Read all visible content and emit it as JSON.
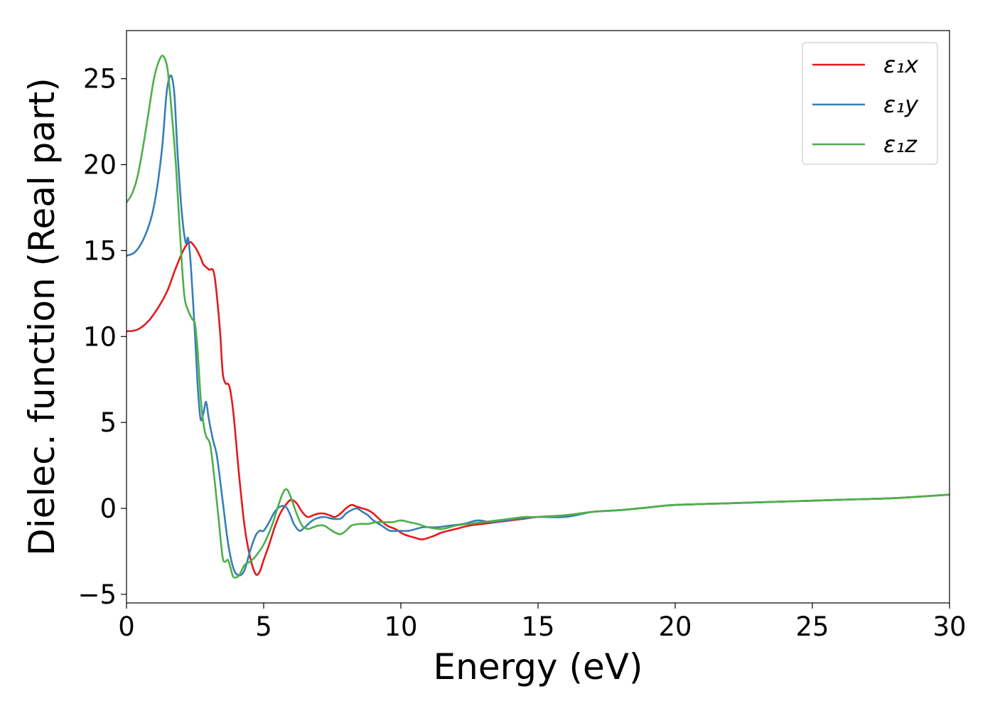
{
  "chart_data": {
    "type": "line",
    "xlabel": "Energy (eV)",
    "ylabel": "Dielec. function (Real part)",
    "xlim": [
      0,
      30
    ],
    "ylim": [
      -5.5,
      27.8
    ],
    "xticks": [
      0,
      5,
      10,
      15,
      20,
      25,
      30
    ],
    "xtick_labels": [
      "0",
      "5",
      "10",
      "15",
      "20",
      "25",
      "30"
    ],
    "yticks": [
      -5,
      0,
      5,
      10,
      15,
      20,
      25
    ],
    "ytick_labels": [
      "−5",
      "0",
      "5",
      "10",
      "15",
      "20",
      "25"
    ],
    "grid": false,
    "legend_position": "top-right",
    "series": [
      {
        "name": "ε₁x",
        "color": "#e41a1c",
        "points": [
          [
            0,
            10.3
          ],
          [
            0.4,
            10.4
          ],
          [
            0.8,
            10.9
          ],
          [
            1.2,
            11.8
          ],
          [
            1.5,
            12.7
          ],
          [
            1.8,
            14.0
          ],
          [
            2.1,
            15.1
          ],
          [
            2.3,
            15.5
          ],
          [
            2.5,
            15.2
          ],
          [
            2.7,
            14.6
          ],
          [
            2.8,
            14.2
          ],
          [
            3.0,
            13.9
          ],
          [
            3.2,
            13.6
          ],
          [
            3.4,
            10.5
          ],
          [
            3.5,
            8.0
          ],
          [
            3.6,
            7.3
          ],
          [
            3.75,
            7.1
          ],
          [
            3.9,
            5.5
          ],
          [
            4.1,
            2.0
          ],
          [
            4.3,
            -1.0
          ],
          [
            4.5,
            -2.8
          ],
          [
            4.7,
            -3.8
          ],
          [
            4.85,
            -3.7
          ],
          [
            5.0,
            -3.0
          ],
          [
            5.2,
            -2.1
          ],
          [
            5.4,
            -1.1
          ],
          [
            5.6,
            -0.3
          ],
          [
            5.8,
            0.2
          ],
          [
            6.0,
            0.5
          ],
          [
            6.2,
            0.3
          ],
          [
            6.4,
            -0.2
          ],
          [
            6.6,
            -0.5
          ],
          [
            6.8,
            -0.4
          ],
          [
            7.0,
            -0.3
          ],
          [
            7.2,
            -0.3
          ],
          [
            7.4,
            -0.4
          ],
          [
            7.6,
            -0.5
          ],
          [
            7.8,
            -0.3
          ],
          [
            8.0,
            0.0
          ],
          [
            8.2,
            0.2
          ],
          [
            8.4,
            0.1
          ],
          [
            8.6,
            0.0
          ],
          [
            8.8,
            -0.1
          ],
          [
            9.0,
            -0.3
          ],
          [
            9.2,
            -0.6
          ],
          [
            9.5,
            -1.0
          ],
          [
            9.8,
            -1.2
          ],
          [
            10.1,
            -1.5
          ],
          [
            10.5,
            -1.7
          ],
          [
            10.8,
            -1.8
          ],
          [
            11.2,
            -1.6
          ],
          [
            11.5,
            -1.4
          ],
          [
            12.0,
            -1.2
          ],
          [
            12.5,
            -1.0
          ],
          [
            13.0,
            -0.9
          ],
          [
            13.5,
            -0.8
          ],
          [
            14.0,
            -0.7
          ],
          [
            14.5,
            -0.6
          ],
          [
            15.0,
            -0.5
          ],
          [
            16.0,
            -0.4
          ],
          [
            17.0,
            -0.2
          ],
          [
            18.0,
            -0.1
          ],
          [
            19.0,
            0.05
          ],
          [
            20.0,
            0.2
          ],
          [
            22.0,
            0.3
          ],
          [
            24.0,
            0.4
          ],
          [
            26.0,
            0.5
          ],
          [
            28.0,
            0.6
          ],
          [
            30.0,
            0.8
          ]
        ]
      },
      {
        "name": "ε₁y",
        "color": "#377eb8",
        "points": [
          [
            0,
            14.7
          ],
          [
            0.3,
            14.9
          ],
          [
            0.6,
            15.6
          ],
          [
            0.9,
            16.9
          ],
          [
            1.1,
            18.5
          ],
          [
            1.3,
            21.0
          ],
          [
            1.45,
            24.0
          ],
          [
            1.55,
            25.0
          ],
          [
            1.65,
            25.1
          ],
          [
            1.75,
            24.0
          ],
          [
            1.85,
            21.0
          ],
          [
            2.0,
            17.5
          ],
          [
            2.15,
            15.5
          ],
          [
            2.25,
            15.7
          ],
          [
            2.35,
            14.0
          ],
          [
            2.5,
            10.0
          ],
          [
            2.6,
            7.0
          ],
          [
            2.7,
            5.2
          ],
          [
            2.8,
            5.5
          ],
          [
            2.9,
            6.2
          ],
          [
            3.0,
            5.2
          ],
          [
            3.15,
            4.0
          ],
          [
            3.3,
            3.0
          ],
          [
            3.5,
            0.5
          ],
          [
            3.7,
            -2.0
          ],
          [
            3.9,
            -3.5
          ],
          [
            4.1,
            -3.9
          ],
          [
            4.3,
            -3.6
          ],
          [
            4.5,
            -2.5
          ],
          [
            4.7,
            -1.6
          ],
          [
            4.85,
            -1.3
          ],
          [
            5.0,
            -1.3
          ],
          [
            5.2,
            -0.8
          ],
          [
            5.4,
            -0.2
          ],
          [
            5.6,
            0.1
          ],
          [
            5.8,
            0.1
          ],
          [
            5.95,
            -0.3
          ],
          [
            6.1,
            -0.9
          ],
          [
            6.3,
            -1.3
          ],
          [
            6.5,
            -1.1
          ],
          [
            6.7,
            -0.8
          ],
          [
            6.9,
            -0.6
          ],
          [
            7.2,
            -0.5
          ],
          [
            7.5,
            -0.6
          ],
          [
            7.8,
            -0.6
          ],
          [
            8.0,
            -0.3
          ],
          [
            8.2,
            -0.1
          ],
          [
            8.4,
            0.0
          ],
          [
            8.6,
            -0.2
          ],
          [
            8.8,
            -0.4
          ],
          [
            9.0,
            -0.7
          ],
          [
            9.3,
            -1.0
          ],
          [
            9.6,
            -1.3
          ],
          [
            9.9,
            -1.3
          ],
          [
            10.3,
            -1.3
          ],
          [
            10.8,
            -1.1
          ],
          [
            11.3,
            -1.1
          ],
          [
            11.8,
            -1.0
          ],
          [
            12.3,
            -0.9
          ],
          [
            12.8,
            -0.7
          ],
          [
            13.3,
            -0.8
          ],
          [
            13.8,
            -0.7
          ],
          [
            14.3,
            -0.6
          ],
          [
            15.0,
            -0.5
          ],
          [
            16.0,
            -0.5
          ],
          [
            17.0,
            -0.2
          ],
          [
            18.0,
            -0.1
          ],
          [
            19.0,
            0.05
          ],
          [
            20.0,
            0.2
          ],
          [
            22.0,
            0.3
          ],
          [
            24.0,
            0.4
          ],
          [
            26.0,
            0.5
          ],
          [
            28.0,
            0.6
          ],
          [
            30.0,
            0.8
          ]
        ]
      },
      {
        "name": "ε₁z",
        "color": "#4daf4a",
        "points": [
          [
            0,
            17.8
          ],
          [
            0.2,
            18.3
          ],
          [
            0.4,
            19.3
          ],
          [
            0.6,
            21.0
          ],
          [
            0.8,
            23.0
          ],
          [
            1.0,
            25.0
          ],
          [
            1.2,
            26.1
          ],
          [
            1.35,
            26.3
          ],
          [
            1.5,
            25.5
          ],
          [
            1.65,
            23.0
          ],
          [
            1.8,
            20.0
          ],
          [
            1.95,
            16.0
          ],
          [
            2.1,
            12.5
          ],
          [
            2.25,
            11.5
          ],
          [
            2.4,
            11.0
          ],
          [
            2.5,
            10.7
          ],
          [
            2.6,
            9.0
          ],
          [
            2.7,
            6.5
          ],
          [
            2.8,
            5.0
          ],
          [
            2.9,
            4.2
          ],
          [
            3.05,
            3.7
          ],
          [
            3.2,
            1.8
          ],
          [
            3.35,
            -0.5
          ],
          [
            3.5,
            -2.8
          ],
          [
            3.6,
            -3.1
          ],
          [
            3.7,
            -3.0
          ],
          [
            3.8,
            -3.5
          ],
          [
            3.9,
            -4.0
          ],
          [
            4.1,
            -3.9
          ],
          [
            4.3,
            -3.3
          ],
          [
            4.5,
            -3.1
          ],
          [
            4.7,
            -2.8
          ],
          [
            5.0,
            -2.1
          ],
          [
            5.3,
            -1.0
          ],
          [
            5.5,
            0.0
          ],
          [
            5.7,
            0.9
          ],
          [
            5.85,
            1.1
          ],
          [
            6.0,
            0.6
          ],
          [
            6.2,
            -0.3
          ],
          [
            6.4,
            -1.0
          ],
          [
            6.6,
            -1.2
          ],
          [
            6.8,
            -1.1
          ],
          [
            7.0,
            -1.0
          ],
          [
            7.2,
            -1.0
          ],
          [
            7.4,
            -1.2
          ],
          [
            7.6,
            -1.4
          ],
          [
            7.8,
            -1.5
          ],
          [
            8.0,
            -1.3
          ],
          [
            8.2,
            -1.0
          ],
          [
            8.5,
            -0.9
          ],
          [
            8.8,
            -0.9
          ],
          [
            9.1,
            -0.8
          ],
          [
            9.4,
            -0.8
          ],
          [
            9.7,
            -0.8
          ],
          [
            10.0,
            -0.7
          ],
          [
            10.3,
            -0.8
          ],
          [
            10.6,
            -0.9
          ],
          [
            11.0,
            -1.1
          ],
          [
            11.5,
            -1.2
          ],
          [
            12.0,
            -1.0
          ],
          [
            12.5,
            -0.9
          ],
          [
            13.0,
            -0.8
          ],
          [
            13.5,
            -0.7
          ],
          [
            14.0,
            -0.6
          ],
          [
            14.5,
            -0.5
          ],
          [
            15.0,
            -0.5
          ],
          [
            16.0,
            -0.4
          ],
          [
            17.0,
            -0.2
          ],
          [
            18.0,
            -0.1
          ],
          [
            19.0,
            0.05
          ],
          [
            20.0,
            0.2
          ],
          [
            22.0,
            0.3
          ],
          [
            24.0,
            0.4
          ],
          [
            26.0,
            0.5
          ],
          [
            28.0,
            0.6
          ],
          [
            30.0,
            0.8
          ]
        ]
      }
    ]
  }
}
